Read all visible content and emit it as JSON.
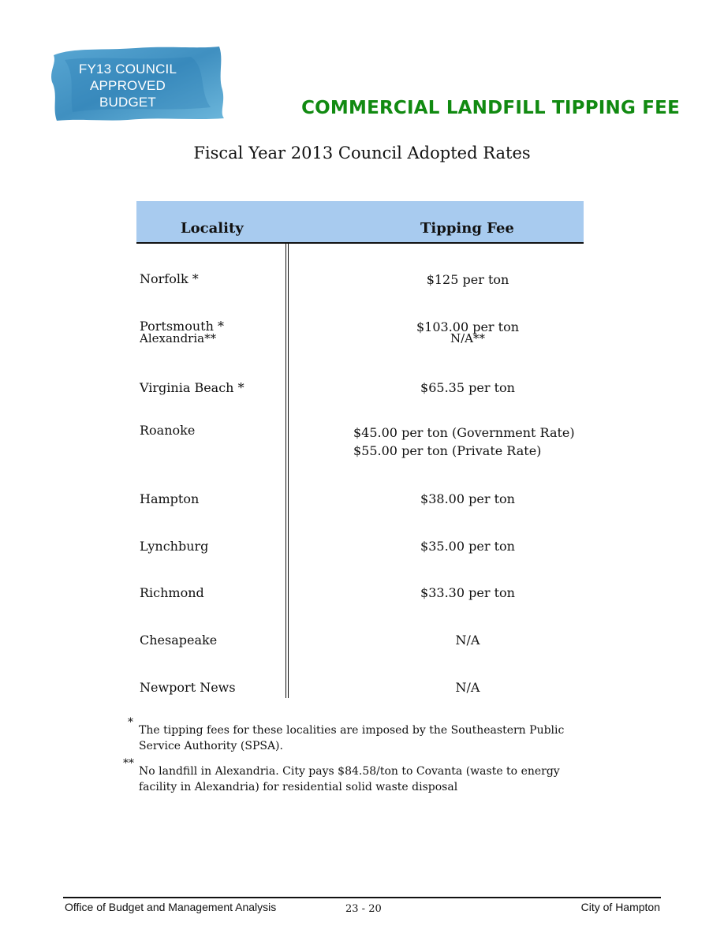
{
  "badge": {
    "lines": [
      "FY13 COUNCIL",
      "APPROVED",
      "BUDGET"
    ],
    "color": "#3b8fc0"
  },
  "section_title": "COMMERCIAL LANDFILL TIPPING FEE",
  "page_title": "Fiscal Year 2013 Council Adopted Rates",
  "table": {
    "headers": {
      "locality": "Locality",
      "fee": "Tipping Fee"
    },
    "header_color": "#a8cbef",
    "rows": [
      {
        "locality": "Norfolk *",
        "fee": "$125 per ton"
      },
      {
        "locality": "Portsmouth *",
        "fee": "$103.00 per ton"
      },
      {
        "locality": "Alexandria**",
        "fee": "N/A**"
      },
      {
        "locality": "Virginia Beach *",
        "fee": "$65.35 per ton"
      },
      {
        "locality": "Roanoke",
        "fee": "$45.00 per ton (Government Rate)",
        "fee2": "$55.00 per ton (Private Rate)"
      },
      {
        "locality": "Hampton",
        "fee": "$38.00 per ton"
      },
      {
        "locality": "Lynchburg",
        "fee": "$35.00 per ton"
      },
      {
        "locality": "Richmond",
        "fee": "$33.30 per ton"
      },
      {
        "locality": "Chesapeake",
        "fee": "N/A"
      },
      {
        "locality": "Newport News",
        "fee": "N/A"
      }
    ]
  },
  "footnotes": [
    {
      "mark": "*",
      "text": "The tipping fees for these localities are imposed by the Southeastern Public Service Authority (SPSA)."
    },
    {
      "mark": "**",
      "text": "No landfill in Alexandria.  City pays $84.58/ton to Covanta (waste to energy facility in Alexandria) for residential solid waste disposal"
    }
  ],
  "footer": {
    "left": "Office of Budget and Management Analysis",
    "page": "23 - 20",
    "right": "City of Hampton"
  }
}
